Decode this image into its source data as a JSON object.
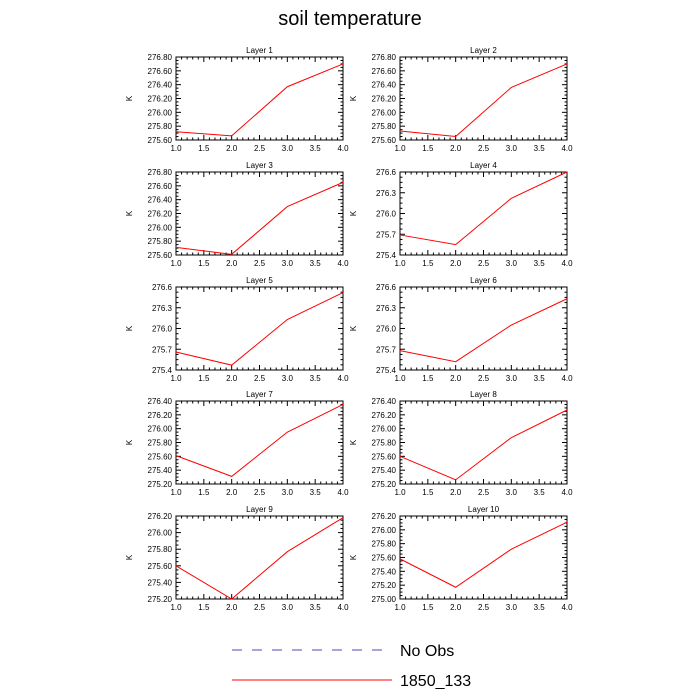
{
  "page": {
    "title": "soil temperature"
  },
  "legend": {
    "items": [
      {
        "label": "No Obs",
        "color": "#4b4bb0",
        "style": "dashed"
      },
      {
        "label": "1850_133",
        "color": "#ff0000",
        "style": "solid"
      }
    ]
  },
  "chart_data": [
    {
      "type": "line",
      "title": "Layer 1",
      "ylabel": "K",
      "x": [
        1,
        2,
        3,
        4
      ],
      "xlim": [
        1,
        4
      ],
      "xticks": [
        "1.0",
        "1.5",
        "2.0",
        "2.5",
        "3.0",
        "3.5",
        "4.0"
      ],
      "ylim": [
        275.6,
        276.8
      ],
      "yticks": [
        "275.60",
        "275.80",
        "276.00",
        "276.20",
        "276.40",
        "276.60",
        "276.80"
      ],
      "series": [
        {
          "name": "1850_133",
          "values": [
            275.72,
            275.66,
            276.37,
            276.7
          ]
        }
      ]
    },
    {
      "type": "line",
      "title": "Layer 2",
      "ylabel": "K",
      "x": [
        1,
        2,
        3,
        4
      ],
      "xlim": [
        1,
        4
      ],
      "xticks": [
        "1.0",
        "1.5",
        "2.0",
        "2.5",
        "3.0",
        "3.5",
        "4.0"
      ],
      "ylim": [
        275.6,
        276.8
      ],
      "yticks": [
        "275.60",
        "275.80",
        "276.00",
        "276.20",
        "276.40",
        "276.60",
        "276.80"
      ],
      "series": [
        {
          "name": "1850_133",
          "values": [
            275.73,
            275.65,
            276.36,
            276.7
          ]
        }
      ]
    },
    {
      "type": "line",
      "title": "Layer 3",
      "ylabel": "K",
      "x": [
        1,
        2,
        3,
        4
      ],
      "xlim": [
        1,
        4
      ],
      "xticks": [
        "1.0",
        "1.5",
        "2.0",
        "2.5",
        "3.0",
        "3.5",
        "4.0"
      ],
      "ylim": [
        275.6,
        276.8
      ],
      "yticks": [
        "275.60",
        "275.80",
        "276.00",
        "276.20",
        "276.40",
        "276.60",
        "276.80"
      ],
      "series": [
        {
          "name": "1850_133",
          "values": [
            275.71,
            275.61,
            276.3,
            276.65
          ]
        }
      ]
    },
    {
      "type": "line",
      "title": "Layer 4",
      "ylabel": "K",
      "x": [
        1,
        2,
        3,
        4
      ],
      "xlim": [
        1,
        4
      ],
      "xticks": [
        "1.0",
        "1.5",
        "2.0",
        "2.5",
        "3.0",
        "3.5",
        "4.0"
      ],
      "ylim": [
        275.4,
        276.6
      ],
      "yticks": [
        "275.4",
        "275.7",
        "276.0",
        "276.3",
        "276.6"
      ],
      "series": [
        {
          "name": "1850_133",
          "values": [
            275.69,
            275.55,
            276.22,
            276.6
          ]
        }
      ]
    },
    {
      "type": "line",
      "title": "Layer 5",
      "ylabel": "K",
      "x": [
        1,
        2,
        3,
        4
      ],
      "xlim": [
        1,
        4
      ],
      "xticks": [
        "1.0",
        "1.5",
        "2.0",
        "2.5",
        "3.0",
        "3.5",
        "4.0"
      ],
      "ylim": [
        275.4,
        276.6
      ],
      "yticks": [
        "275.4",
        "275.7",
        "276.0",
        "276.3",
        "276.6"
      ],
      "series": [
        {
          "name": "1850_133",
          "values": [
            275.66,
            275.47,
            276.13,
            276.52
          ]
        }
      ]
    },
    {
      "type": "line",
      "title": "Layer 6",
      "ylabel": "K",
      "x": [
        1,
        2,
        3,
        4
      ],
      "xlim": [
        1,
        4
      ],
      "xticks": [
        "1.0",
        "1.5",
        "2.0",
        "2.5",
        "3.0",
        "3.5",
        "4.0"
      ],
      "ylim": [
        275.4,
        276.6
      ],
      "yticks": [
        "275.4",
        "275.7",
        "276.0",
        "276.3",
        "276.6"
      ],
      "series": [
        {
          "name": "1850_133",
          "values": [
            275.68,
            275.52,
            276.05,
            276.43
          ]
        }
      ]
    },
    {
      "type": "line",
      "title": "Layer 7",
      "ylabel": "K",
      "x": [
        1,
        2,
        3,
        4
      ],
      "xlim": [
        1,
        4
      ],
      "xticks": [
        "1.0",
        "1.5",
        "2.0",
        "2.5",
        "3.0",
        "3.5",
        "4.0"
      ],
      "ylim": [
        275.2,
        276.4
      ],
      "yticks": [
        "275.20",
        "275.40",
        "275.60",
        "275.80",
        "276.00",
        "276.20",
        "276.40"
      ],
      "series": [
        {
          "name": "1850_133",
          "values": [
            275.61,
            275.31,
            275.95,
            276.35
          ]
        }
      ]
    },
    {
      "type": "line",
      "title": "Layer 8",
      "ylabel": "K",
      "x": [
        1,
        2,
        3,
        4
      ],
      "xlim": [
        1,
        4
      ],
      "xticks": [
        "1.0",
        "1.5",
        "2.0",
        "2.5",
        "3.0",
        "3.5",
        "4.0"
      ],
      "ylim": [
        275.2,
        276.4
      ],
      "yticks": [
        "275.20",
        "275.40",
        "275.60",
        "275.80",
        "276.00",
        "276.20",
        "276.40"
      ],
      "series": [
        {
          "name": "1850_133",
          "values": [
            275.6,
            275.26,
            275.87,
            276.27
          ]
        }
      ]
    },
    {
      "type": "line",
      "title": "Layer 9",
      "ylabel": "K",
      "x": [
        1,
        2,
        3,
        4
      ],
      "xlim": [
        1,
        4
      ],
      "xticks": [
        "1.0",
        "1.5",
        "2.0",
        "2.5",
        "3.0",
        "3.5",
        "4.0"
      ],
      "ylim": [
        275.2,
        276.2
      ],
      "yticks": [
        "275.20",
        "275.40",
        "275.60",
        "275.80",
        "276.00",
        "276.20"
      ],
      "series": [
        {
          "name": "1850_133",
          "values": [
            275.6,
            275.2,
            275.77,
            276.18
          ]
        }
      ]
    },
    {
      "type": "line",
      "title": "Layer 10",
      "ylabel": "K",
      "x": [
        1,
        2,
        3,
        4
      ],
      "xlim": [
        1,
        4
      ],
      "xticks": [
        "1.0",
        "1.5",
        "2.0",
        "2.5",
        "3.0",
        "3.5",
        "4.0"
      ],
      "ylim": [
        275.0,
        276.2
      ],
      "yticks": [
        "275.00",
        "275.20",
        "275.40",
        "275.60",
        "275.80",
        "276.00",
        "276.20"
      ],
      "series": [
        {
          "name": "1850_133",
          "values": [
            275.58,
            275.17,
            275.72,
            276.11
          ]
        }
      ]
    }
  ]
}
